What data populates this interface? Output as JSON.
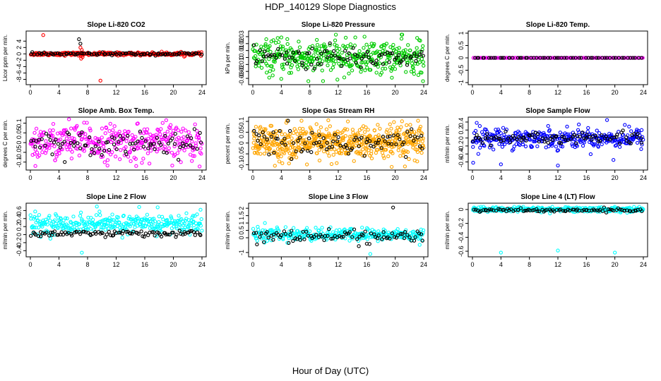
{
  "figure": {
    "title": "HDP_140129  Slope Diagnostics",
    "xlabel": "Hour of Day (UTC)"
  },
  "chart_data": [
    {
      "type": "scatter",
      "title": "Slope Li-820 CO2",
      "ylabel": "Licor ppm per min.",
      "xlim": [
        0,
        24
      ],
      "ylim": [
        -9,
        6.5
      ],
      "xticks": [
        0,
        4,
        8,
        12,
        16,
        20,
        24
      ],
      "yticks": [
        -8,
        -6,
        -4,
        -2,
        0,
        2,
        4
      ],
      "series": [
        {
          "name": "main",
          "color": "#ff0000",
          "n": 260,
          "center": 0.0,
          "spread": 0.25,
          "extra": [
            [
              1.8,
              5.9
            ],
            [
              7.0,
              2.0
            ],
            [
              7.2,
              1.2
            ],
            [
              7.1,
              -1.5
            ],
            [
              7.3,
              -1.0
            ],
            [
              7.0,
              -0.6
            ],
            [
              9.8,
              -8.4
            ]
          ]
        },
        {
          "name": "overlay",
          "color": "#000000",
          "n": 90,
          "center": 0.0,
          "spread": 0.2,
          "extra": [
            [
              6.8,
              4.6
            ],
            [
              7.0,
              3.2
            ]
          ]
        }
      ]
    },
    {
      "type": "scatter",
      "title": "Slope Li-820 Pressure",
      "ylabel": "kPa per min.",
      "xlim": [
        0,
        24
      ],
      "ylim": [
        -0.036,
        0.035
      ],
      "xticks": [
        0,
        4,
        8,
        12,
        16,
        20,
        24
      ],
      "yticks": [
        -0.03,
        -0.02,
        -0.01,
        0.0,
        0.01,
        0.02,
        0.03
      ],
      "series": [
        {
          "name": "main",
          "color": "#00cc00",
          "n": 420,
          "center": 0.0,
          "spread": 0.012,
          "extra": [
            [
              20.9,
              0.033
            ],
            [
              7.8,
              -0.034
            ],
            [
              23.9,
              -0.034
            ]
          ]
        },
        {
          "name": "overlay",
          "color": "#000000",
          "n": 90,
          "center": 0.0,
          "spread": 0.008,
          "extra": []
        }
      ]
    },
    {
      "type": "scatter",
      "title": "Slope Li-820 Temp.",
      "ylabel": "degrees C per min.",
      "xlim": [
        0,
        24
      ],
      "ylim": [
        -1.0,
        1.0
      ],
      "xticks": [
        0,
        4,
        8,
        12,
        16,
        20,
        24
      ],
      "yticks": [
        -1.0,
        -0.5,
        0.0,
        0.5,
        1.0
      ],
      "series": [
        {
          "name": "main",
          "color": "#ff00ff",
          "n": 150,
          "center": 0.0,
          "spread": 0.0,
          "extra": []
        },
        {
          "name": "overlay",
          "color": "#000000",
          "n": 60,
          "center": 0.0,
          "spread": 0.0,
          "extra": []
        }
      ]
    },
    {
      "type": "scatter",
      "title": "Slope Amb. Box Temp.",
      "ylabel": "degrees C per min.",
      "xlim": [
        0,
        24
      ],
      "ylim": [
        -0.13,
        0.12
      ],
      "xticks": [
        0,
        4,
        8,
        12,
        16,
        20,
        24
      ],
      "yticks": [
        -0.1,
        -0.05,
        0.0,
        0.05,
        0.1
      ],
      "series": [
        {
          "name": "main",
          "color": "#ff00ff",
          "n": 360,
          "center": 0.0,
          "spread": 0.045,
          "extra": [
            [
              0.7,
              -0.12
            ],
            [
              5.4,
              0.12
            ],
            [
              14.8,
              -0.12
            ],
            [
              19.0,
              0.115
            ]
          ]
        },
        {
          "name": "overlay",
          "color": "#000000",
          "n": 90,
          "center": 0.0,
          "spread": 0.03,
          "extra": []
        }
      ]
    },
    {
      "type": "scatter",
      "title": "Slope Gas Stream RH",
      "ylabel": "percent per min.",
      "xlim": [
        0,
        24
      ],
      "ylim": [
        -0.115,
        0.11
      ],
      "xticks": [
        0,
        4,
        8,
        12,
        16,
        20,
        24
      ],
      "yticks": [
        -0.1,
        -0.05,
        0.0,
        0.05,
        0.1
      ],
      "series": [
        {
          "name": "main",
          "color": "#ffa500",
          "n": 560,
          "center": 0.0,
          "spread": 0.04,
          "extra": [
            [
              3.1,
              -0.105
            ],
            [
              10.6,
              0.105
            ],
            [
              19.5,
              -0.11
            ]
          ]
        },
        {
          "name": "overlay",
          "color": "#000000",
          "n": 90,
          "center": 0.0,
          "spread": 0.035,
          "extra": []
        }
      ]
    },
    {
      "type": "scatter",
      "title": "Slope Sample Flow",
      "ylabel": "ml/min per min.",
      "xlim": [
        0,
        24
      ],
      "ylim": [
        -0.75,
        0.47
      ],
      "xticks": [
        0,
        4,
        8,
        12,
        16,
        20,
        24
      ],
      "yticks": [
        -0.6,
        -0.4,
        -0.2,
        0.0,
        0.2,
        0.4
      ],
      "series": [
        {
          "name": "main",
          "color": "#0000ff",
          "n": 340,
          "center": 0.0,
          "spread": 0.12,
          "extra": [
            [
              0.1,
              -0.62
            ],
            [
              4.0,
              -0.66
            ],
            [
              12.0,
              -0.69
            ],
            [
              19.8,
              -0.55
            ],
            [
              0.6,
              0.38
            ],
            [
              18.9,
              0.45
            ]
          ]
        },
        {
          "name": "overlay",
          "color": "#000000",
          "n": 90,
          "center": 0.0,
          "spread": 0.09,
          "extra": []
        }
      ]
    },
    {
      "type": "scatter",
      "title": "Slope Line 2 Flow",
      "ylabel": "ml/min per min.",
      "xlim": [
        0,
        24
      ],
      "ylim": [
        -0.5,
        0.73
      ],
      "xticks": [
        0,
        4,
        8,
        12,
        16,
        20,
        24
      ],
      "yticks": [
        -0.4,
        -0.2,
        0.0,
        0.2,
        0.4,
        0.6
      ],
      "series": [
        {
          "name": "main",
          "color": "#00ffff",
          "n": 340,
          "center": 0.26,
          "spread": 0.12,
          "extra": [
            [
              7.2,
              -0.45
            ],
            [
              9.3,
              0.7
            ],
            [
              17.8,
              0.68
            ],
            [
              23.8,
              0.62
            ]
          ]
        },
        {
          "name": "overlay",
          "color": "#000000",
          "n": 100,
          "center": 0.03,
          "spread": 0.04,
          "extra": []
        }
      ]
    },
    {
      "type": "scatter",
      "title": "Slope Line 3 Flow",
      "ylabel": "ml/min per min.",
      "xlim": [
        0,
        24
      ],
      "ylim": [
        -1.15,
        2.2
      ],
      "xticks": [
        0,
        4,
        8,
        12,
        16,
        20,
        24
      ],
      "yticks": [
        -1.0,
        0.0,
        0.5,
        1.0,
        1.5,
        2.0
      ],
      "series": [
        {
          "name": "main",
          "color": "#00ffff",
          "n": 300,
          "center": 0.2,
          "spread": 0.22,
          "extra": [
            [
              1.7,
              1.0
            ],
            [
              16.5,
              -1.1
            ]
          ]
        },
        {
          "name": "overlay",
          "color": "#000000",
          "n": 90,
          "center": 0.1,
          "spread": 0.22,
          "extra": [
            [
              19.7,
              2.05
            ]
          ]
        }
      ]
    },
    {
      "type": "scatter",
      "title": "Slope Line 4 (LT) Flow",
      "ylabel": "ml/min per min.",
      "xlim": [
        0,
        24
      ],
      "ylim": [
        -0.65,
        0.06
      ],
      "xticks": [
        0,
        4,
        8,
        12,
        16,
        20,
        24
      ],
      "yticks": [
        -0.6,
        -0.4,
        -0.2,
        0.0
      ],
      "series": [
        {
          "name": "main",
          "color": "#00ffff",
          "n": 320,
          "center": 0.0,
          "spread": 0.018,
          "extra": [
            [
              4.0,
              -0.62
            ],
            [
              12.0,
              -0.59
            ],
            [
              20.0,
              -0.62
            ]
          ]
        },
        {
          "name": "overlay",
          "color": "#000000",
          "n": 90,
          "center": -0.01,
          "spread": 0.012,
          "extra": []
        }
      ]
    }
  ]
}
